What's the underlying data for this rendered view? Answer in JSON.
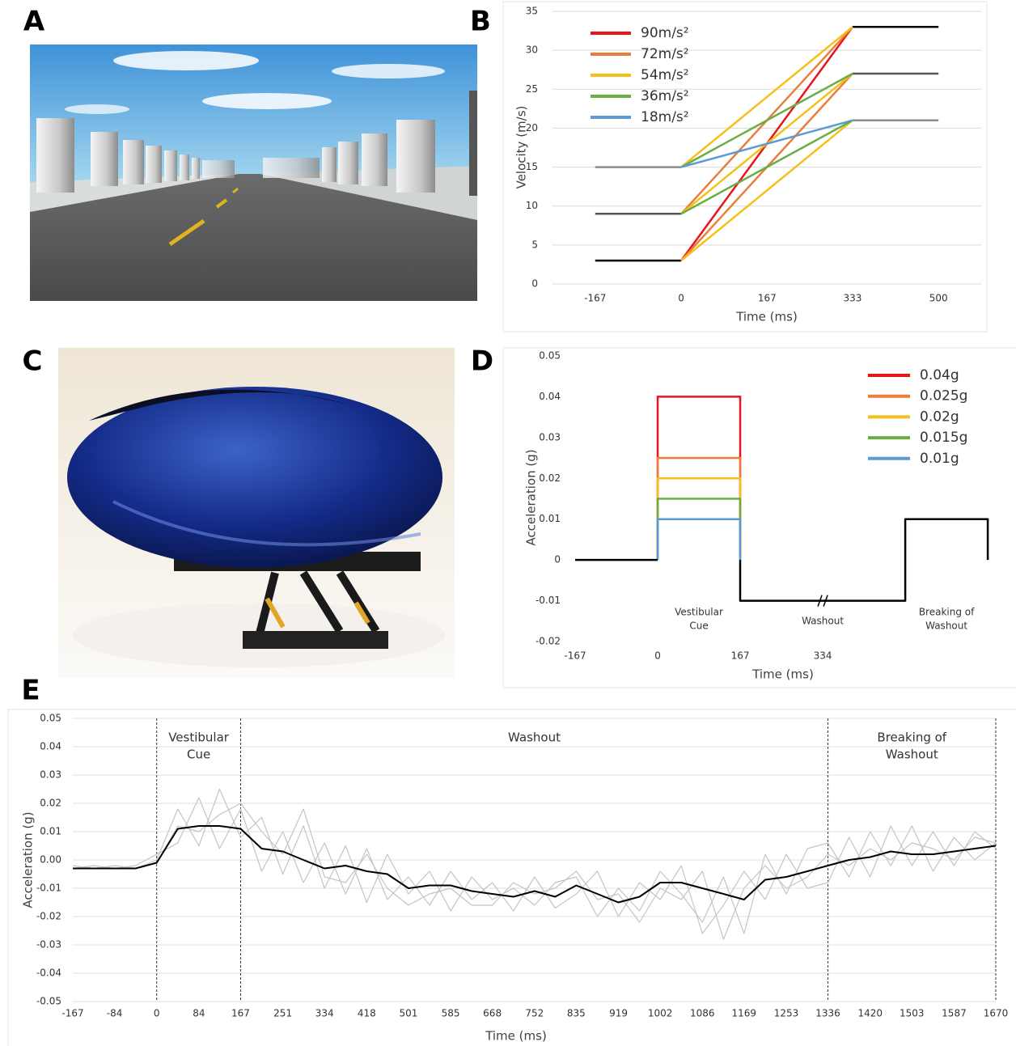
{
  "panel_labels": [
    "A",
    "B",
    "C",
    "D",
    "E"
  ],
  "chart_data": [
    {
      "type": "line",
      "x_label": "Time (ms)",
      "y_label": "Velocity (m/s)",
      "xlim": [
        -250,
        583
      ],
      "xticks": [
        -167,
        0,
        167,
        333,
        500
      ],
      "ylim": [
        0,
        35
      ],
      "yticks": [
        0,
        5,
        10,
        15,
        20,
        25,
        30,
        35
      ],
      "grid": true,
      "legend": "upper left",
      "series": [
        {
          "name": "90m/s²",
          "color": "#e8141b",
          "segments": [
            {
              "x": [
                0,
                333
              ],
              "values": [
                3,
                33
              ]
            }
          ]
        },
        {
          "name": "72m/s²",
          "color": "#e97f3b",
          "segments": [
            {
              "x": [
                0,
                333
              ],
              "values": [
                3,
                27
              ]
            },
            {
              "x": [
                0,
                333
              ],
              "values": [
                9,
                33
              ]
            }
          ]
        },
        {
          "name": "54m/s²",
          "color": "#f6c01a",
          "segments": [
            {
              "x": [
                0,
                333
              ],
              "values": [
                3,
                21
              ]
            },
            {
              "x": [
                0,
                333
              ],
              "values": [
                9,
                27
              ]
            },
            {
              "x": [
                0,
                333
              ],
              "values": [
                15,
                33
              ]
            }
          ]
        },
        {
          "name": "36m/s²",
          "color": "#6aad45",
          "segments": [
            {
              "x": [
                0,
                333
              ],
              "values": [
                9,
                21
              ]
            },
            {
              "x": [
                0,
                333
              ],
              "values": [
                15,
                27
              ]
            }
          ]
        },
        {
          "name": "18m/s²",
          "color": "#5a9bd5",
          "segments": [
            {
              "x": [
                0,
                333
              ],
              "values": [
                15,
                21
              ]
            }
          ]
        }
      ],
      "baselines": [
        {
          "color": "#000000",
          "x": [
            -167,
            0
          ],
          "values": [
            3,
            3
          ]
        },
        {
          "color": "#555555",
          "x": [
            -167,
            0
          ],
          "values": [
            9,
            9
          ]
        },
        {
          "color": "#8c8c8c",
          "x": [
            -167,
            0
          ],
          "values": [
            15,
            15
          ]
        },
        {
          "color": "#000000",
          "x": [
            333,
            500
          ],
          "values": [
            33,
            33
          ]
        },
        {
          "color": "#555555",
          "x": [
            333,
            500
          ],
          "values": [
            27,
            27
          ]
        },
        {
          "color": "#8c8c8c",
          "x": [
            333,
            500
          ],
          "values": [
            21,
            21
          ]
        }
      ]
    },
    {
      "type": "step",
      "x_label": "Time (ms)",
      "y_label": "Acceleration (g)",
      "xlim": [
        -167,
        676
      ],
      "xticks": [
        -167,
        0,
        167,
        334
      ],
      "ylim": [
        -0.02,
        0.05
      ],
      "yticks": [
        0.05,
        0.04,
        0.03,
        0.02,
        0.01,
        0,
        -0.01,
        -0.02
      ],
      "grid": false,
      "legend": "upper right",
      "pulse_x": [
        0,
        167
      ],
      "series": [
        {
          "name": "0.04g",
          "color": "#e8141b",
          "values": 0.04
        },
        {
          "name": "0.025g",
          "color": "#e97f3b",
          "values": 0.025
        },
        {
          "name": "0.02g",
          "color": "#f6c01a",
          "values": 0.02
        },
        {
          "name": "0.015g",
          "color": "#6aad45",
          "values": 0.015
        },
        {
          "name": "0.01g",
          "color": "#5a9bd5",
          "values": 0.01
        }
      ],
      "trace": {
        "color": "#000000",
        "x": [
          -167,
          0,
          0,
          167,
          167,
          501,
          501,
          668,
          668
        ],
        "values": [
          0,
          0,
          null,
          0,
          -0.01,
          -0.01,
          0.01,
          0.01,
          0
        ]
      },
      "annotations": [
        [
          "Vestibular",
          "Cue"
        ],
        [
          "Washout"
        ],
        [
          "Breaking of",
          "Washout"
        ]
      ]
    },
    {
      "type": "line",
      "x_label": "Time (ms)",
      "y_label": "Acceleration (g)",
      "xlim": [
        -167,
        1670
      ],
      "xticks": [
        -167,
        -84,
        0,
        84,
        167,
        251,
        334,
        418,
        501,
        585,
        668,
        752,
        835,
        919,
        1002,
        1086,
        1169,
        1253,
        1336,
        1420,
        1503,
        1587,
        1670
      ],
      "ylim": [
        -0.05,
        0.05
      ],
      "yticks": [
        0.05,
        0.04,
        0.03,
        0.02,
        0.01,
        {
          "value": 0,
          "label": "0.00"
        },
        -0.01,
        -0.02,
        -0.03,
        -0.04,
        -0.05
      ],
      "grid": true,
      "markers": [
        0,
        167,
        1336,
        1670
      ],
      "annotations": [
        [
          "Vestibular",
          "Cue"
        ],
        [
          "Washout"
        ],
        [
          "Breaking of",
          "Washout"
        ]
      ],
      "x": [
        -167,
        -125,
        -84,
        -42,
        0,
        42,
        84,
        125,
        167,
        209,
        251,
        292,
        334,
        376,
        418,
        459,
        501,
        543,
        585,
        627,
        668,
        710,
        752,
        793,
        835,
        877,
        919,
        961,
        1002,
        1044,
        1086,
        1128,
        1169,
        1211,
        1253,
        1295,
        1336,
        1378,
        1420,
        1461,
        1503,
        1545,
        1587,
        1628,
        1670
      ],
      "series": [
        {
          "color": "#c4c4c4",
          "values": [
            -0.003,
            -0.003,
            -0.003,
            -0.003,
            0.0,
            0.018,
            0.005,
            0.025,
            0.008,
            0.015,
            -0.005,
            0.012,
            -0.01,
            0.005,
            -0.015,
            0.002,
            -0.012,
            -0.004,
            -0.018,
            -0.006,
            -0.014,
            -0.01,
            -0.016,
            -0.008,
            -0.006,
            -0.02,
            -0.01,
            -0.018,
            -0.004,
            -0.012,
            -0.022,
            -0.006,
            -0.026,
            0.002,
            -0.012,
            0.004,
            0.006,
            -0.006,
            0.01,
            -0.002,
            0.012,
            -0.004,
            0.008,
            0.0,
            0.006
          ]
        },
        {
          "color": "#c4c4c4",
          "values": [
            -0.003,
            -0.002,
            -0.003,
            -0.002,
            0.002,
            0.006,
            0.022,
            0.004,
            0.018,
            -0.004,
            0.01,
            -0.008,
            0.006,
            -0.012,
            0.004,
            -0.014,
            -0.006,
            -0.016,
            -0.004,
            -0.014,
            -0.008,
            -0.018,
            -0.006,
            -0.017,
            -0.012,
            -0.004,
            -0.02,
            -0.008,
            -0.014,
            -0.002,
            -0.026,
            -0.016,
            -0.004,
            -0.014,
            0.002,
            -0.01,
            -0.008,
            0.008,
            -0.006,
            0.012,
            -0.002,
            0.01,
            -0.002,
            0.01,
            0.004
          ]
        },
        {
          "color": "#c4c4c4",
          "values": [
            -0.002,
            -0.003,
            -0.002,
            -0.003,
            -0.001,
            0.012,
            0.01,
            0.016,
            0.02,
            0.01,
            0.002,
            0.018,
            -0.006,
            -0.008,
            0.002,
            -0.01,
            -0.016,
            -0.012,
            -0.01,
            -0.016,
            -0.016,
            -0.008,
            -0.012,
            -0.01,
            -0.004,
            -0.014,
            -0.012,
            -0.022,
            -0.01,
            -0.014,
            -0.004,
            -0.028,
            -0.01,
            -0.002,
            -0.01,
            -0.006,
            0.002,
            -0.002,
            0.004,
            0.0,
            0.006,
            0.004,
            0.0,
            0.008,
            0.006
          ]
        },
        {
          "color": "#000000",
          "values": [
            -0.003,
            -0.003,
            -0.003,
            -0.003,
            -0.001,
            0.011,
            0.012,
            0.012,
            0.011,
            0.004,
            0.003,
            0.0,
            -0.003,
            -0.002,
            -0.004,
            -0.005,
            -0.01,
            -0.009,
            -0.009,
            -0.011,
            -0.012,
            -0.013,
            -0.011,
            -0.013,
            -0.009,
            -0.012,
            -0.015,
            -0.013,
            -0.008,
            -0.008,
            -0.01,
            -0.012,
            -0.014,
            -0.007,
            -0.006,
            -0.004,
            -0.002,
            0.0,
            0.001,
            0.003,
            0.002,
            0.002,
            0.003,
            0.004,
            0.005
          ]
        }
      ]
    }
  ]
}
